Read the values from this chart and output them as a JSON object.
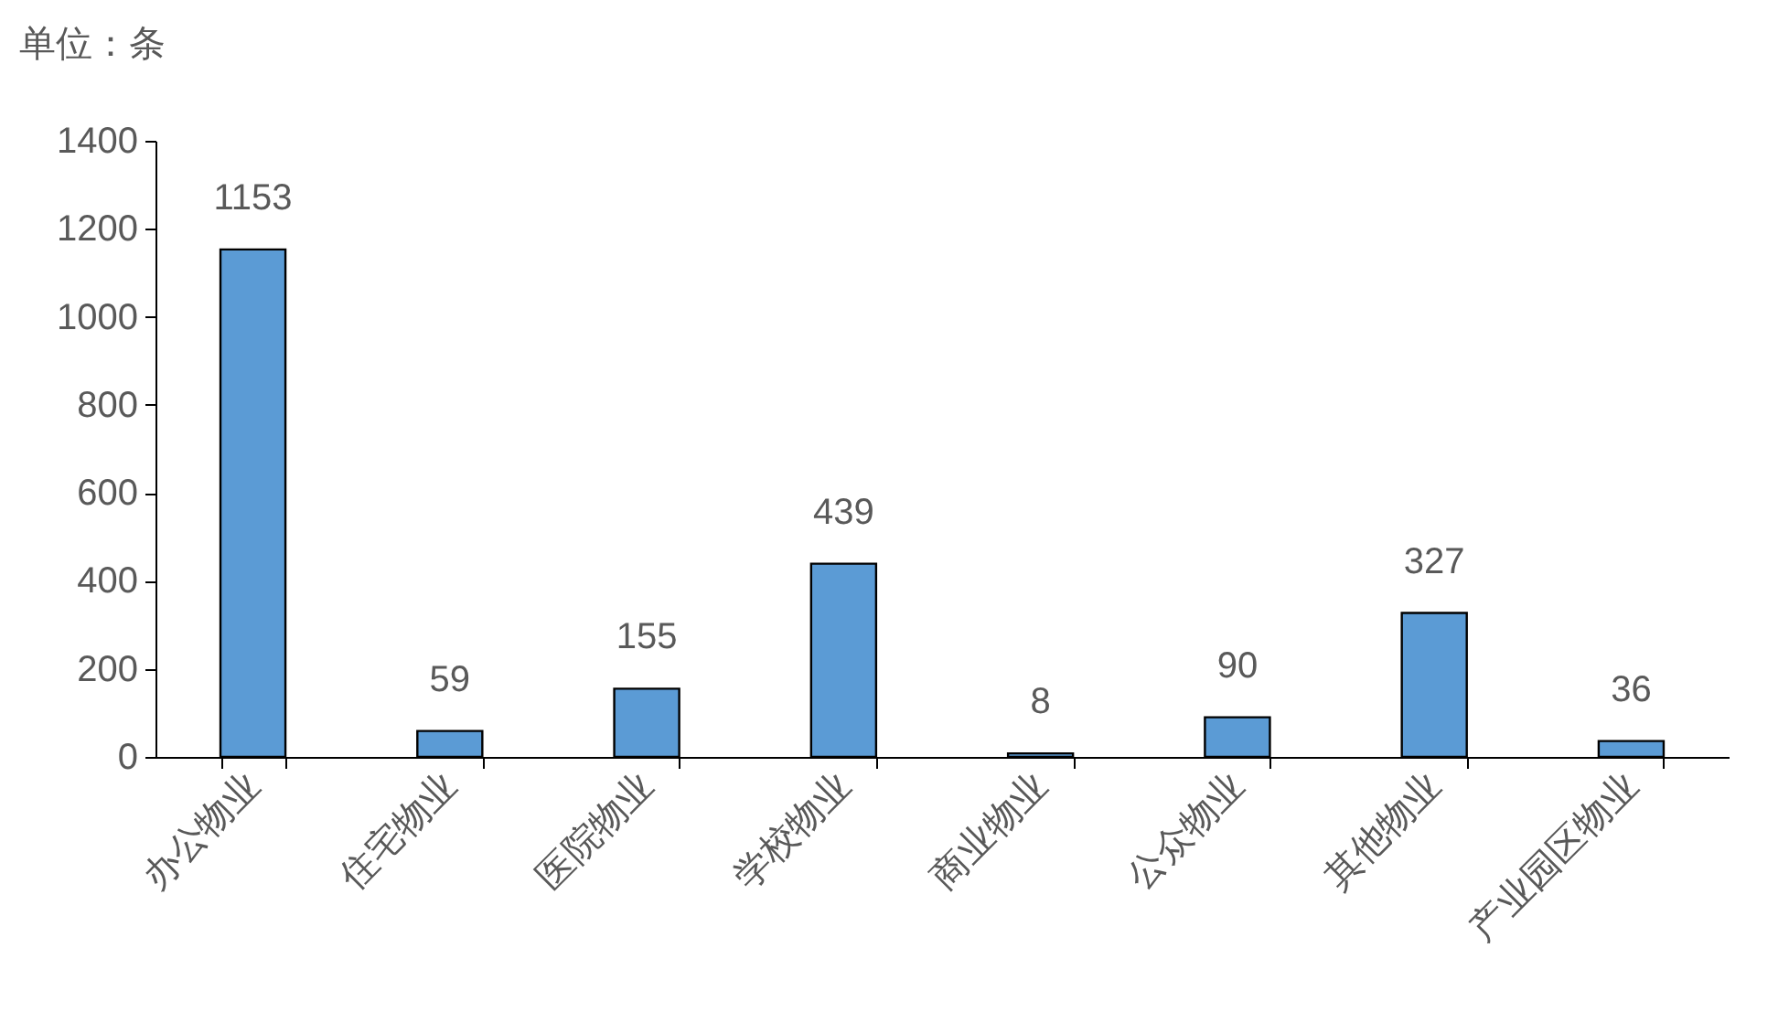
{
  "chart_data": {
    "type": "bar",
    "ylabel": "单位：条",
    "categories": [
      "办公物业",
      "住宅物业",
      "医院物业",
      "学校物业",
      "商业物业",
      "公众物业",
      "其他物业",
      "产业园区物业"
    ],
    "values": [
      1153,
      59,
      155,
      439,
      8,
      90,
      327,
      36
    ],
    "color": "#5b9bd5",
    "ylim": [
      0,
      1400
    ],
    "yticks": [
      0,
      200,
      400,
      600,
      800,
      1000,
      1200,
      1400
    ],
    "grid": false,
    "data_labels": true
  }
}
